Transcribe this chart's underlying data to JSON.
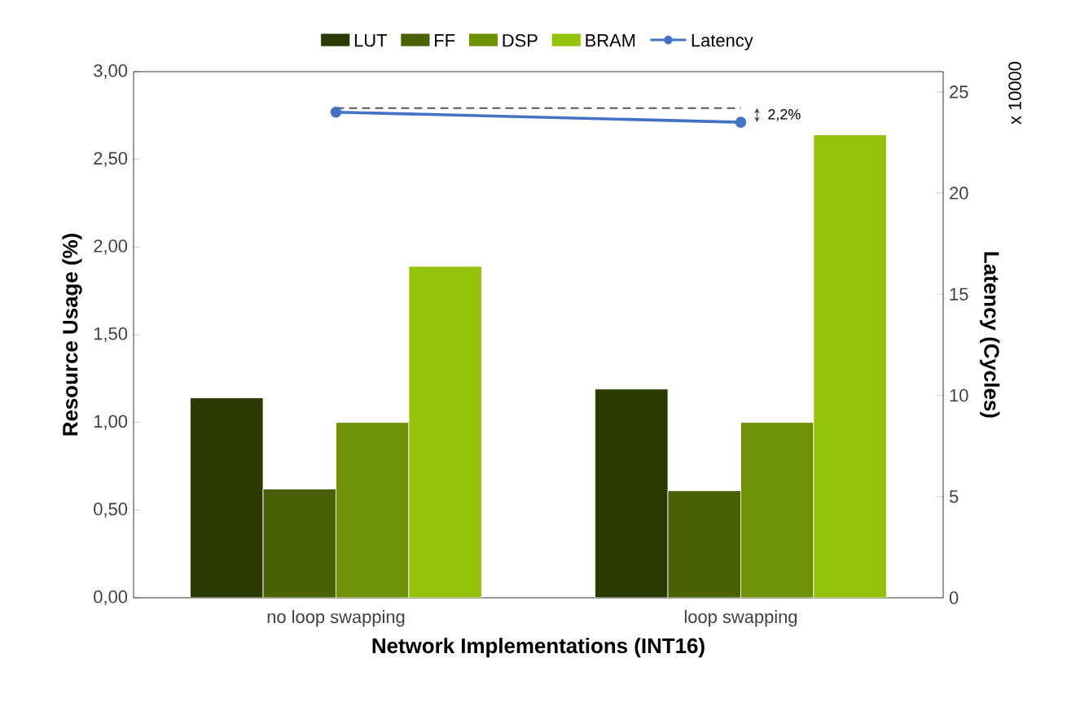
{
  "chart_data": {
    "type": "bar",
    "xlabel": "Network Implementations (INT16)",
    "ylabel": "Resource Usage (%)",
    "y2label": "Latency (Cycles)",
    "categories": [
      "no loop swapping",
      "loop swapping"
    ],
    "series": [
      {
        "name": "LUT",
        "color": "#2b3a04",
        "values": [
          1.14,
          1.19
        ]
      },
      {
        "name": "FF",
        "color": "#4a6005",
        "values": [
          0.62,
          0.61
        ]
      },
      {
        "name": "DSP",
        "color": "#6e9108",
        "values": [
          1.0,
          1.0
        ]
      },
      {
        "name": "BRAM",
        "color": "#94c20b",
        "values": [
          1.89,
          2.64
        ]
      },
      {
        "name": "Latency",
        "color": "#4472c4",
        "type": "line",
        "axis": "y2",
        "marker": "circle",
        "values": [
          24.0,
          23.5
        ]
      }
    ],
    "ylim": [
      0,
      3
    ],
    "yticks": [
      {
        "value": 0,
        "label": "0,00"
      },
      {
        "value": 0.5,
        "label": "0,50"
      },
      {
        "value": 1,
        "label": "1,00"
      },
      {
        "value": 1.5,
        "label": "1,50"
      },
      {
        "value": 2,
        "label": "2,00"
      },
      {
        "value": 2.5,
        "label": "2,50"
      },
      {
        "value": 3,
        "label": "3,00"
      }
    ],
    "y2lim": [
      0,
      26
    ],
    "y2ticks": [
      0,
      5,
      10,
      15,
      20,
      25
    ],
    "ref_lines": [
      {
        "axis": "y2",
        "value": 24.2,
        "color": "#595959",
        "line_style": "dashed"
      }
    ],
    "annotations": [
      "2,2%",
      "x 10000"
    ],
    "legend": "top",
    "grid": false
  }
}
